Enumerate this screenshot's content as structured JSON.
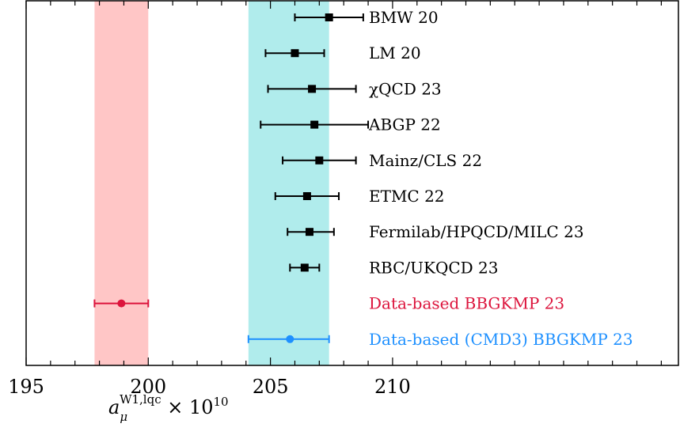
{
  "chart_data": {
    "type": "scatter",
    "subtype": "forest-plot-with-error-bars",
    "title": "",
    "xlabel": {
      "base": "a",
      "subscript": "μ",
      "superscript": "W1,lqc",
      "suffix": " × 10",
      "exponent": "10"
    },
    "ylabel": "",
    "xlim": [
      195,
      221.7
    ],
    "xticks": [
      "195",
      "200",
      "205",
      "210"
    ],
    "xtick_values": [
      195,
      200,
      205,
      210
    ],
    "minor_tick_step": 1,
    "grid": false,
    "bands": [
      {
        "name": "data-based-band",
        "x_min": 197.8,
        "x_max": 200.0,
        "color": "#ffc6c6"
      },
      {
        "name": "cmd3-band",
        "x_min": 204.1,
        "x_max": 207.4,
        "color": "#b0ecec"
      }
    ],
    "series": [
      {
        "label": "BMW 20",
        "value": 207.4,
        "err_low": 1.4,
        "err_high": 1.4,
        "marker": "square",
        "color": "#000000"
      },
      {
        "label": "LM 20",
        "value": 206.0,
        "err_low": 1.2,
        "err_high": 1.2,
        "marker": "square",
        "color": "#000000"
      },
      {
        "label": "χQCD 23",
        "value": 206.7,
        "err_low": 1.8,
        "err_high": 1.8,
        "marker": "square",
        "color": "#000000"
      },
      {
        "label": "ABGP 22",
        "value": 206.8,
        "err_low": 2.2,
        "err_high": 2.2,
        "marker": "square",
        "color": "#000000"
      },
      {
        "label": "Mainz/CLS 22",
        "value": 207.0,
        "err_low": 1.5,
        "err_high": 1.5,
        "marker": "square",
        "color": "#000000"
      },
      {
        "label": "ETMC 22",
        "value": 206.5,
        "err_low": 1.3,
        "err_high": 1.3,
        "marker": "square",
        "color": "#000000"
      },
      {
        "label": "Fermilab/HPQCD/MILC 23",
        "value": 206.6,
        "err_low": 0.9,
        "err_high": 1.0,
        "marker": "square",
        "color": "#000000"
      },
      {
        "label": "RBC/UKQCD 23",
        "value": 206.4,
        "err_low": 0.6,
        "err_high": 0.6,
        "marker": "square",
        "color": "#000000"
      },
      {
        "label": "Data-based BBGKMP 23",
        "value": 198.9,
        "err_low": 1.1,
        "err_high": 1.1,
        "marker": "circle",
        "color": "#dc143c"
      },
      {
        "label": "Data-based (CMD3) BBGKMP 23",
        "value": 205.8,
        "err_low": 1.7,
        "err_high": 1.6,
        "marker": "circle",
        "color": "#1e90ff"
      }
    ]
  }
}
